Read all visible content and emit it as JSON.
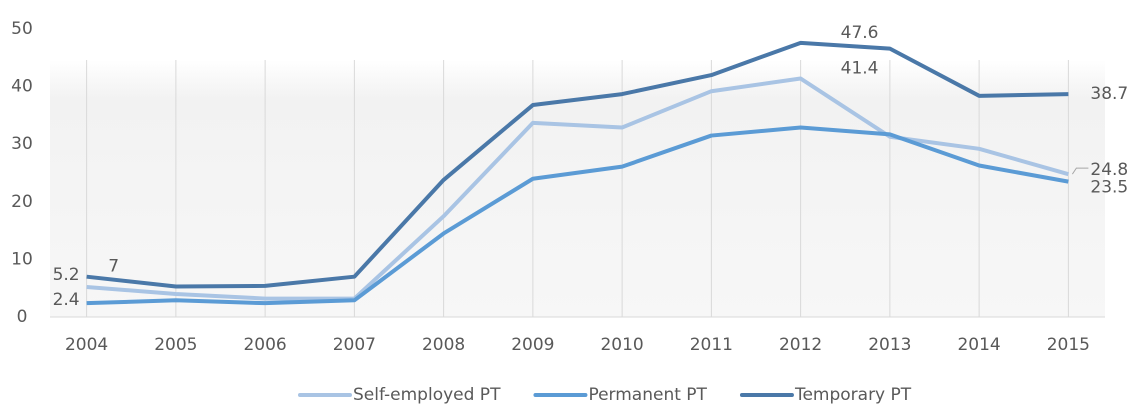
{
  "chart_data": {
    "type": "line",
    "categories": [
      "2004",
      "2005",
      "2006",
      "2007",
      "2008",
      "2009",
      "2010",
      "2011",
      "2012",
      "2013",
      "2014",
      "2015"
    ],
    "series": [
      {
        "name": "Self-employed PT",
        "color": "#a9c4e4",
        "values": [
          5.2,
          4,
          3.2,
          3.2,
          17.5,
          33.7,
          32.9,
          39.2,
          41.4,
          31.3,
          29.2,
          24.8
        ],
        "value_labels": [
          "5.2",
          null,
          null,
          null,
          null,
          null,
          null,
          null,
          "41.4",
          null,
          null,
          "24.8"
        ]
      },
      {
        "name": "Permanent PT",
        "color": "#5b9bd5",
        "values": [
          2.4,
          2.9,
          2.4,
          2.9,
          14.5,
          24,
          26.1,
          31.5,
          32.9,
          31.7,
          26.3,
          23.5
        ],
        "value_labels": [
          "2.4",
          null,
          null,
          null,
          null,
          null,
          null,
          null,
          null,
          null,
          null,
          "23.5"
        ]
      },
      {
        "name": "Temporary PT",
        "color": "#4a78a8",
        "values": [
          7,
          5.3,
          5.4,
          7,
          23.8,
          36.8,
          38.7,
          42,
          47.6,
          46.6,
          38.4,
          38.7
        ],
        "value_labels": [
          "7",
          null,
          null,
          null,
          null,
          null,
          null,
          null,
          "47.6",
          null,
          null,
          "38.7"
        ]
      }
    ],
    "ylim": [
      0,
      50
    ],
    "yticks": [
      0,
      10,
      20,
      30,
      40,
      50
    ],
    "grid": true,
    "legend": "bottom"
  }
}
